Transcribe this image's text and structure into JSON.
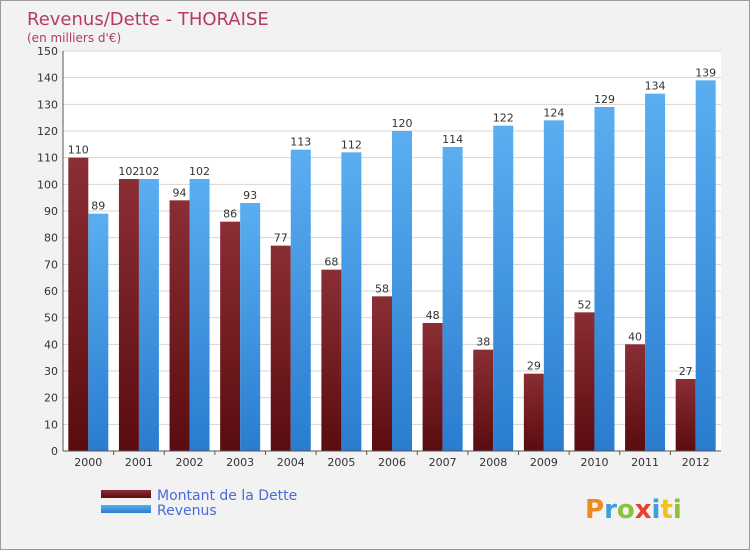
{
  "colors": {
    "debt_light": "#8a2e34",
    "debt_dark": "#5a0c10",
    "rev_light": "#5aaef0",
    "rev_dark": "#2a7ccf",
    "grid": "#d4d4d4",
    "plot_bg": "#ffffff"
  },
  "brand": {
    "letters": [
      "P",
      "r",
      "o",
      "x",
      "i",
      "t",
      "i"
    ],
    "letter_colors": [
      "#f08a1c",
      "#3aa0d8",
      "#8ac23a",
      "#e8402a",
      "#3aa0d8",
      "#f0c020",
      "#8ac23a"
    ]
  },
  "chart_data": {
    "type": "bar",
    "title": "Revenus/Dette - THORAISE",
    "subtitle": "(en milliers d'€)",
    "categories": [
      "2000",
      "2001",
      "2002",
      "2003",
      "2004",
      "2005",
      "2006",
      "2007",
      "2008",
      "2009",
      "2010",
      "2011",
      "2012"
    ],
    "series": [
      {
        "name": "Montant de la Dette",
        "values": [
          110,
          102,
          94,
          86,
          77,
          68,
          58,
          48,
          38,
          29,
          52,
          40,
          27
        ]
      },
      {
        "name": "Revenus",
        "values": [
          89,
          102,
          102,
          93,
          113,
          112,
          120,
          114,
          122,
          124,
          129,
          134,
          139
        ]
      }
    ],
    "ylim": [
      0,
      150
    ],
    "yticks": [
      0,
      10,
      20,
      30,
      40,
      50,
      60,
      70,
      80,
      90,
      100,
      110,
      120,
      130,
      140,
      150
    ],
    "grid": true,
    "legend": "bottom-left"
  }
}
